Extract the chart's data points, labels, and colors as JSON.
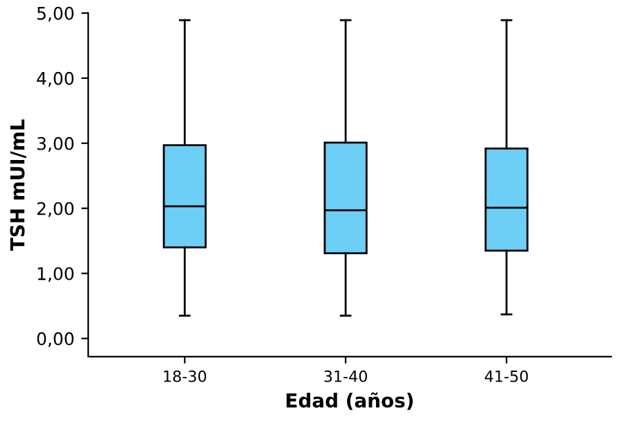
{
  "chart_data": {
    "type": "box",
    "xlabel": "Edad (años)",
    "ylabel": "TSH mUI/mL",
    "categories": [
      "18-30",
      "31-40",
      "41-50"
    ],
    "boxes": [
      {
        "low": 0.35,
        "q1": 1.4,
        "median": 2.03,
        "q3": 2.97,
        "high": 4.89
      },
      {
        "low": 0.35,
        "q1": 1.31,
        "median": 1.97,
        "q3": 3.01,
        "high": 4.89
      },
      {
        "low": 0.37,
        "q1": 1.35,
        "median": 2.01,
        "q3": 2.92,
        "high": 4.89
      }
    ],
    "color": "#6dcff6",
    "ylim": [
      -0.28,
      5.0
    ],
    "yticks": [
      {
        "value": 0,
        "label": "0,00"
      },
      {
        "value": 1,
        "label": "1,00"
      },
      {
        "value": 2,
        "label": "2,00"
      },
      {
        "value": 3,
        "label": "3,00"
      },
      {
        "value": 4,
        "label": "4,00"
      },
      {
        "value": 5,
        "label": "5,00"
      }
    ],
    "grid": false,
    "legend": false
  }
}
